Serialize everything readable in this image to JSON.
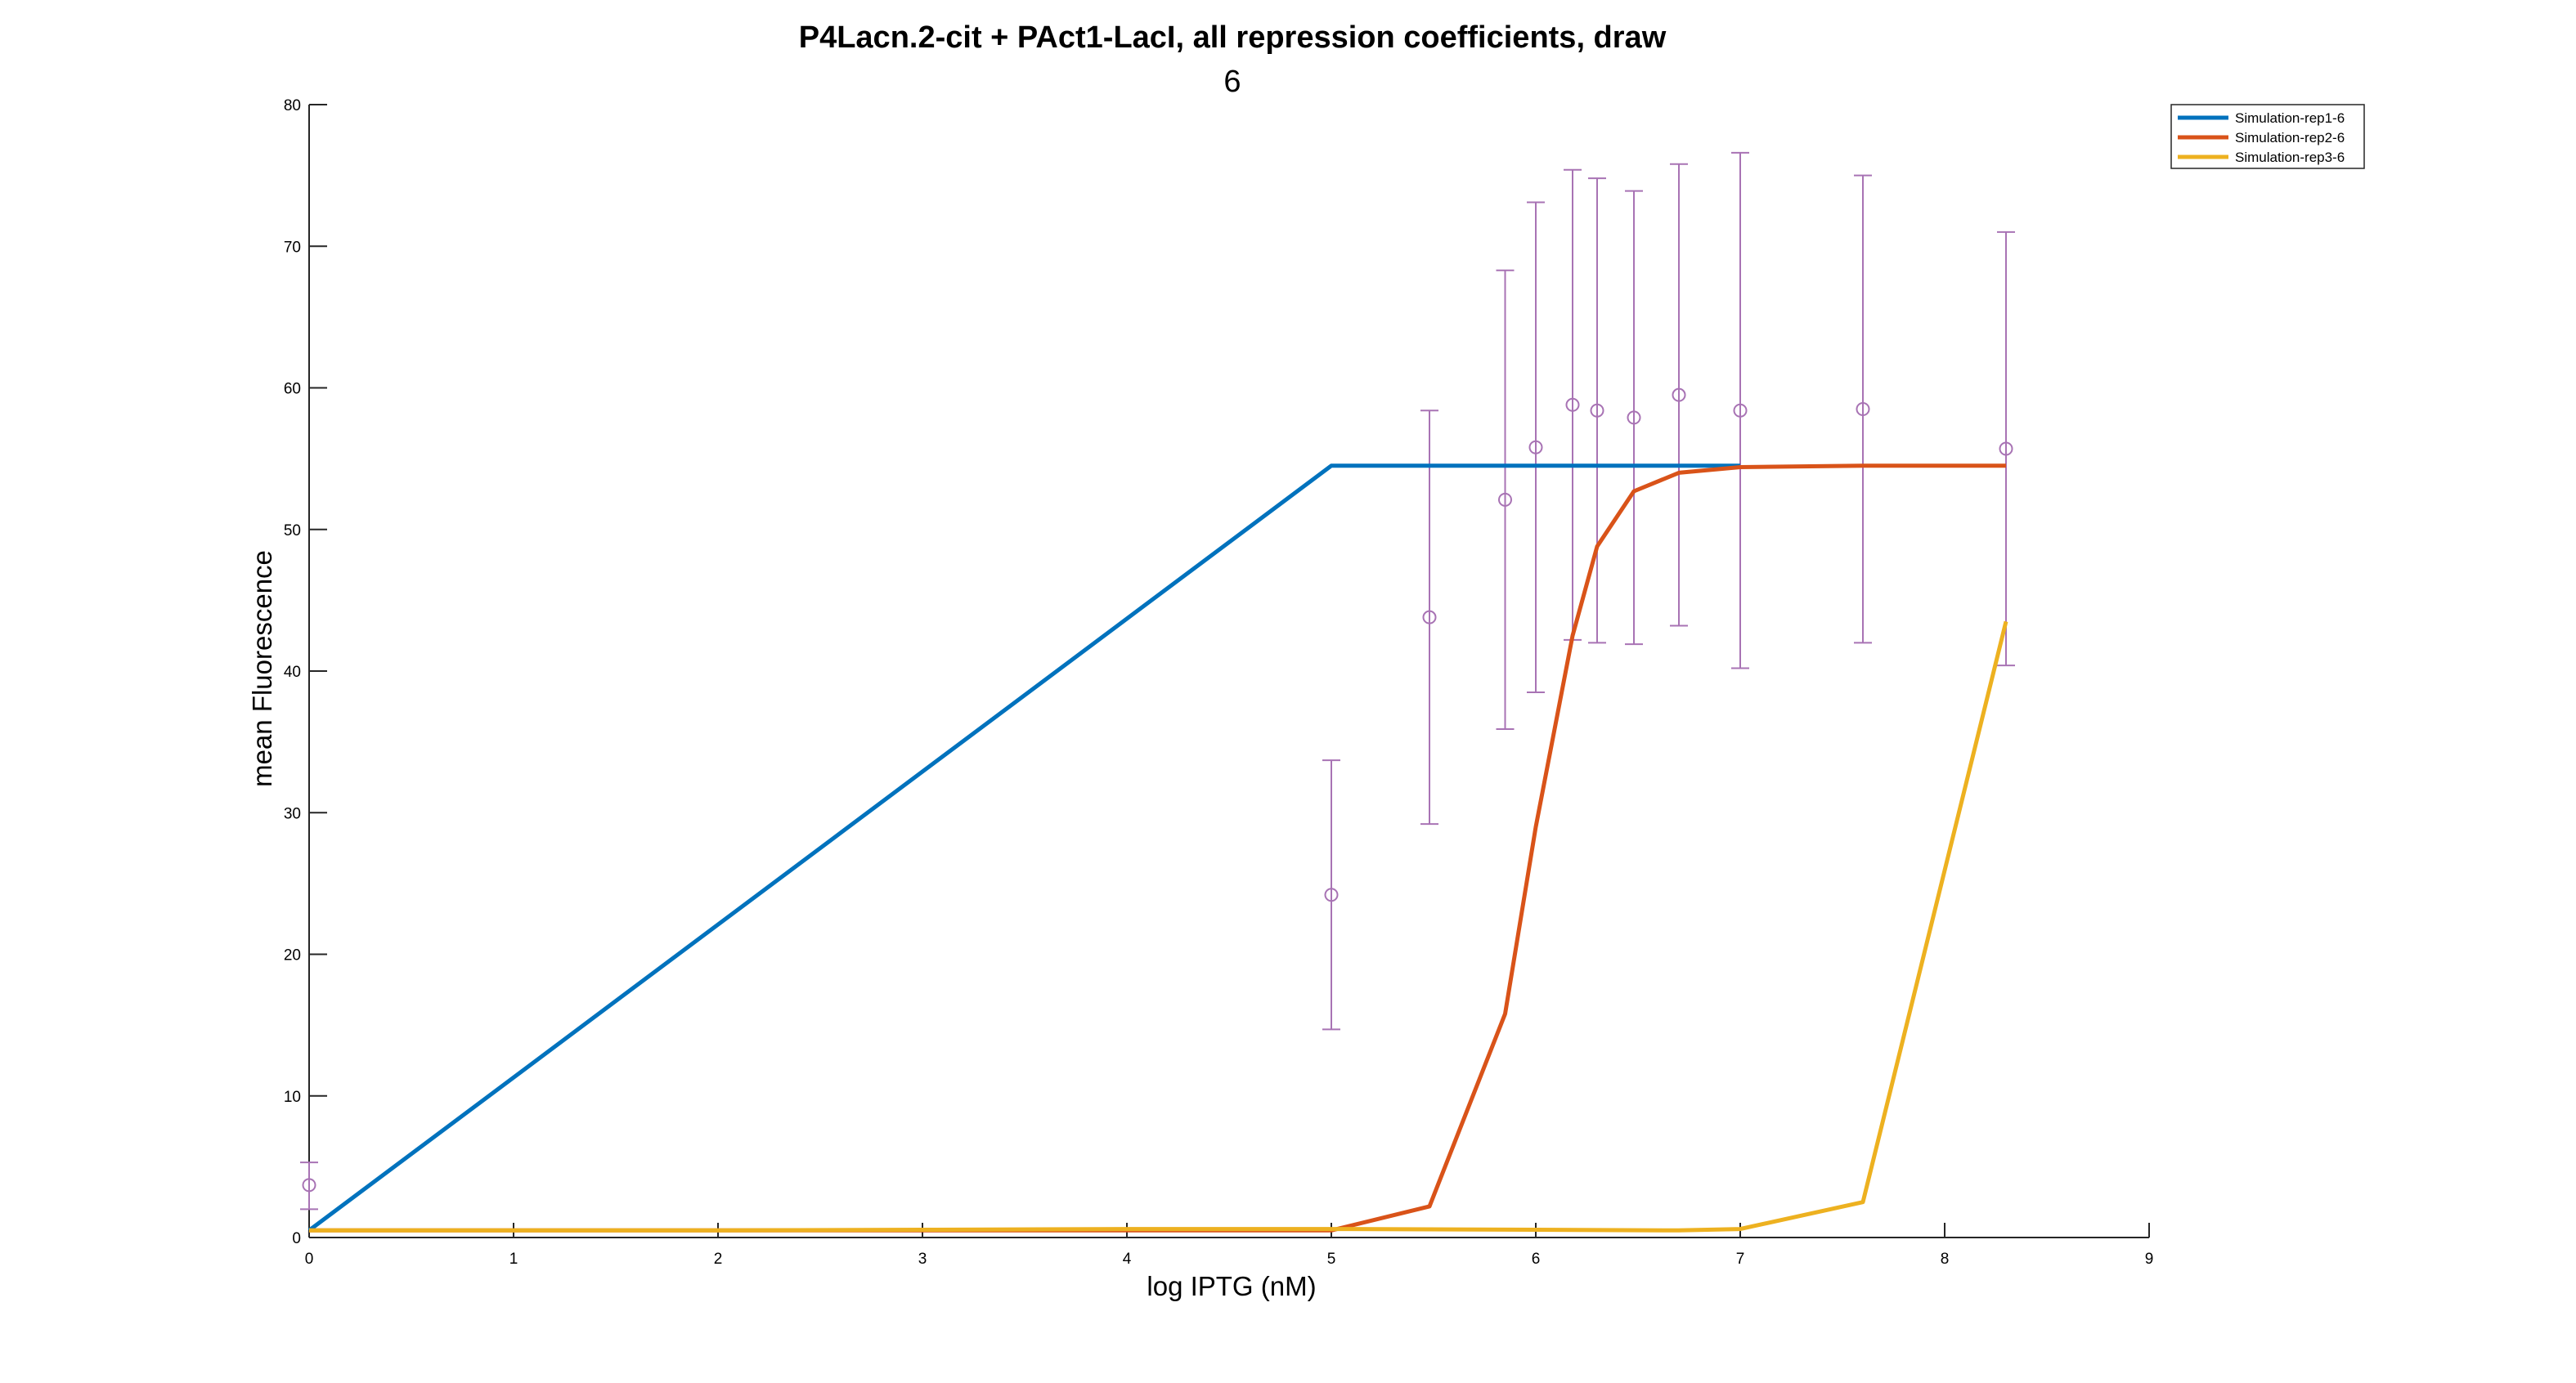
{
  "chart_data": {
    "type": "line",
    "title": "P4Lacn.2-cit + PAct1-LacI, all repression coefficients, draw",
    "subtitle": "6",
    "xlabel": "log IPTG (nM)",
    "ylabel": "mean Fluorescence",
    "xlim": [
      0,
      9
    ],
    "ylim": [
      0,
      80
    ],
    "xticks": [
      0,
      1,
      2,
      3,
      4,
      5,
      6,
      7,
      8,
      9
    ],
    "yticks": [
      0,
      10,
      20,
      30,
      40,
      50,
      60,
      70,
      80
    ],
    "grid": false,
    "legend_position": "top-right",
    "series": [
      {
        "name": "Simulation-rep1-6",
        "color": "#0072BD",
        "x": [
          0,
          5.0,
          7.0
        ],
        "y": [
          0.5,
          54.5,
          54.5
        ]
      },
      {
        "name": "Simulation-rep2-6",
        "color": "#D95319",
        "x": [
          0,
          5.0,
          5.48,
          5.85,
          6.0,
          6.18,
          6.3,
          6.48,
          6.7,
          7.0,
          7.6,
          8.3
        ],
        "y": [
          0.5,
          0.5,
          2.2,
          15.8,
          29.0,
          42.5,
          48.8,
          52.7,
          54.0,
          54.4,
          54.5,
          54.5
        ]
      },
      {
        "name": "Simulation-rep3-6",
        "color": "#EDB120",
        "x": [
          0,
          1,
          2,
          3,
          4,
          5,
          6,
          6.7,
          7.0,
          7.6,
          8.3
        ],
        "y": [
          0.5,
          0.5,
          0.5,
          0.55,
          0.6,
          0.6,
          0.55,
          0.5,
          0.6,
          2.5,
          43.5
        ]
      }
    ],
    "measurements": {
      "color": "#A873B4",
      "points": [
        {
          "x": 0.0,
          "y": 3.7,
          "lo": 2.0,
          "hi": 5.3
        },
        {
          "x": 5.0,
          "y": 24.2,
          "lo": 14.7,
          "hi": 33.7
        },
        {
          "x": 5.48,
          "y": 43.8,
          "lo": 29.2,
          "hi": 58.4
        },
        {
          "x": 5.85,
          "y": 52.1,
          "lo": 35.9,
          "hi": 68.3
        },
        {
          "x": 6.0,
          "y": 55.8,
          "lo": 38.5,
          "hi": 73.1
        },
        {
          "x": 6.18,
          "y": 58.8,
          "lo": 42.2,
          "hi": 75.4
        },
        {
          "x": 6.3,
          "y": 58.4,
          "lo": 42.0,
          "hi": 74.8
        },
        {
          "x": 6.48,
          "y": 57.9,
          "lo": 41.9,
          "hi": 73.9
        },
        {
          "x": 6.7,
          "y": 59.5,
          "lo": 43.2,
          "hi": 75.8
        },
        {
          "x": 7.0,
          "y": 58.4,
          "lo": 40.2,
          "hi": 76.6
        },
        {
          "x": 7.6,
          "y": 58.5,
          "lo": 42.0,
          "hi": 75.0
        },
        {
          "x": 8.3,
          "y": 55.7,
          "lo": 40.4,
          "hi": 71.0
        }
      ]
    }
  }
}
